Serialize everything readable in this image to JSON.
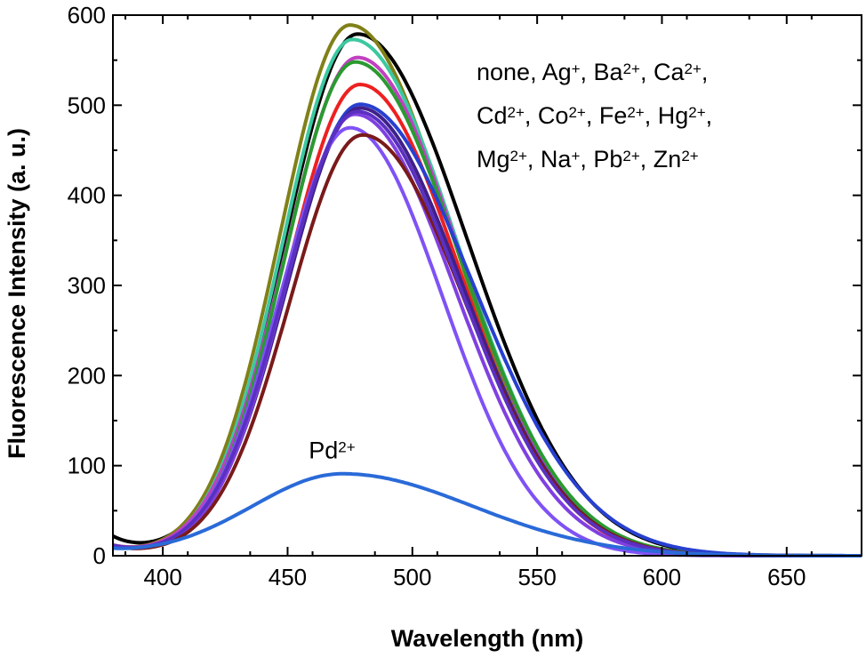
{
  "chart_data": {
    "type": "line",
    "title": "",
    "xlabel": "Wavelength (nm)",
    "ylabel": "Fluorescence Intensity (a. u.)",
    "xlim": [
      380,
      680
    ],
    "ylim": [
      0,
      600
    ],
    "xticks": [
      400,
      450,
      500,
      550,
      600,
      650
    ],
    "yticks": [
      0,
      100,
      200,
      300,
      400,
      500,
      600
    ],
    "grid": false,
    "legend_position": "top-right",
    "legend_lines": [
      [
        {
          "t": "none, Ag"
        },
        {
          "s": "+"
        },
        {
          "t": ", Ba"
        },
        {
          "s": "2+"
        },
        {
          "t": ", Ca"
        },
        {
          "s": "2+"
        },
        {
          "t": ","
        }
      ],
      [
        {
          "t": "Cd"
        },
        {
          "s": "2+"
        },
        {
          "t": ", Co"
        },
        {
          "s": "2+"
        },
        {
          "t": ", Fe"
        },
        {
          "s": "2+"
        },
        {
          "t": ", Hg"
        },
        {
          "s": "2+"
        },
        {
          "t": ","
        }
      ],
      [
        {
          "t": "Mg"
        },
        {
          "s": "2+"
        },
        {
          "t": ", Na"
        },
        {
          "s": "+"
        },
        {
          "t": ", Pb"
        },
        {
          "s": "2+"
        },
        {
          "t": ", Zn"
        },
        {
          "s": "2+"
        }
      ]
    ],
    "annotation": {
      "text": "Pd",
      "sup": "2+",
      "x": 472,
      "y": 108
    },
    "series": [
      {
        "name": "none",
        "color": "#000000",
        "peak": 579,
        "center": 478,
        "sL": 29,
        "sR": 44,
        "base": 20
      },
      {
        "name": "Ag+",
        "color": "#808018",
        "peak": 589,
        "center": 475,
        "sL": 28,
        "sR": 41,
        "base": 10
      },
      {
        "name": "Ba2+",
        "color": "#3cc8a0",
        "peak": 573,
        "center": 476,
        "sL": 28,
        "sR": 42,
        "base": 10
      },
      {
        "name": "Ca2+",
        "color": "#c040c0",
        "peak": 553,
        "center": 478,
        "sL": 29,
        "sR": 41,
        "base": 10
      },
      {
        "name": "Cd2+",
        "color": "#2a9a30",
        "peak": 548,
        "center": 477,
        "sL": 28,
        "sR": 42,
        "base": 10
      },
      {
        "name": "Co2+",
        "color": "#ee2020",
        "peak": 523,
        "center": 479,
        "sL": 29,
        "sR": 40,
        "base": 10
      },
      {
        "name": "Fe2+",
        "color": "#2840d0",
        "peak": 501,
        "center": 479,
        "sL": 29,
        "sR": 45,
        "base": 10
      },
      {
        "name": "Hg2+",
        "color": "#40208a",
        "peak": 497,
        "center": 479,
        "sL": 29,
        "sR": 41,
        "base": 10
      },
      {
        "name": "Mg2+",
        "color": "#8040e0",
        "peak": 490,
        "center": 477,
        "sL": 28,
        "sR": 40,
        "base": 10
      },
      {
        "name": "Na+",
        "color": "#7f52f5",
        "peak": 475,
        "center": 475,
        "sL": 28,
        "sR": 37,
        "base": 10
      },
      {
        "name": "Pb2+",
        "color": "#7a1a1a",
        "peak": 467,
        "center": 480,
        "sL": 29,
        "sR": 41,
        "base": 10
      },
      {
        "name": "Zn2+",
        "color": "#5a30c0",
        "peak": 493,
        "center": 478,
        "sL": 29,
        "sR": 41,
        "base": 10
      },
      {
        "name": "Pd2+",
        "color": "#2a6ad8",
        "peak": 91,
        "center": 472,
        "sL": 36,
        "sR": 52,
        "base": 5
      }
    ]
  }
}
